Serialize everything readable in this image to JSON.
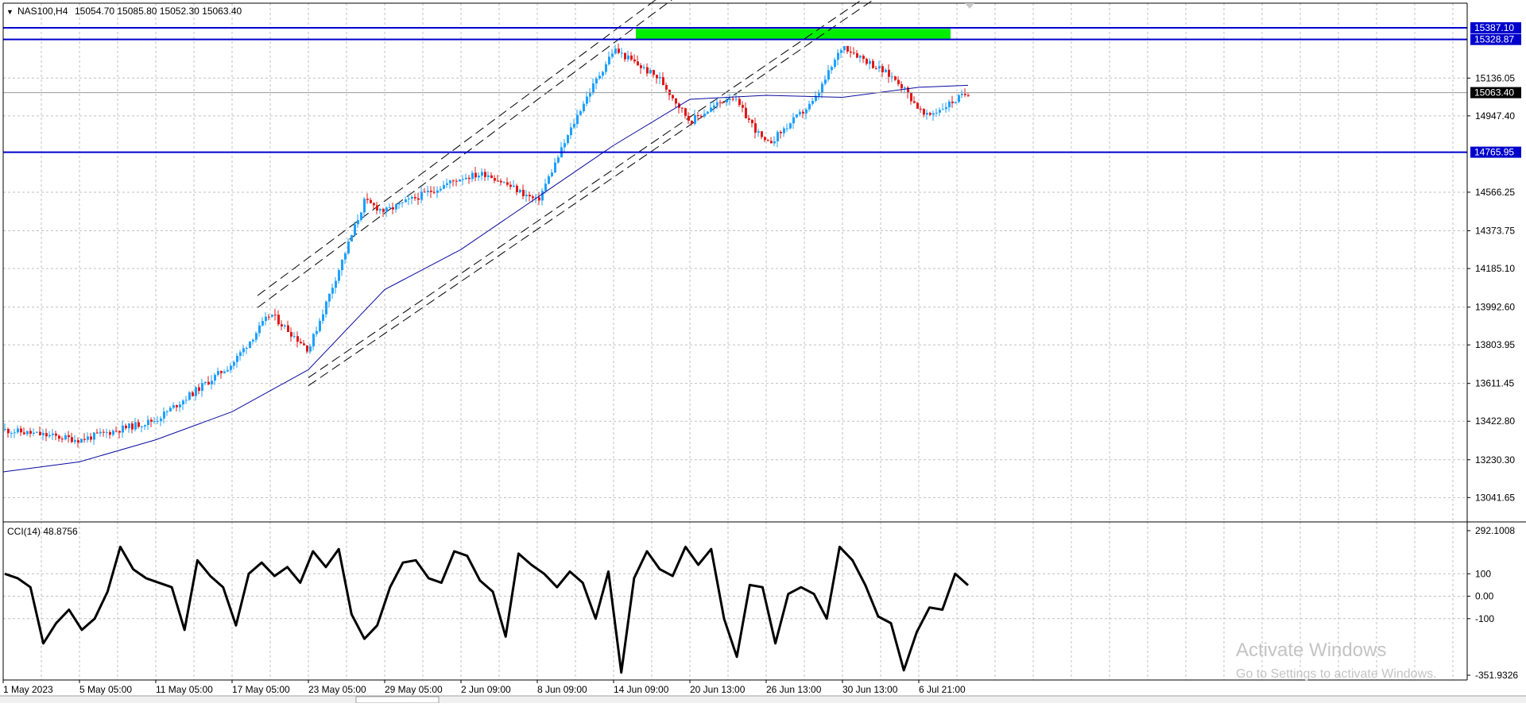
{
  "header": {
    "symbol_timeframe": "NAS100,H4",
    "ohlc": "15054.70 15085.80 15052.30 15063.40",
    "dropdown_glyph": "▼"
  },
  "cci_label": "CCI(14) 48.8756",
  "watermark": {
    "title": "Activate Windows",
    "subtitle": "Go to Settings to activate Windows."
  },
  "colors": {
    "background": "#ffffff",
    "grid": "#c0c0c0",
    "bull": "#1ea0ff",
    "bear": "#e01818",
    "ma": "#0a0aa0",
    "hline": "#0000cc",
    "channel": "#000000",
    "zone": "#00ee00",
    "current_price": "#000000",
    "cci_line": "#000000",
    "tag_fill": "#0000cc",
    "tag_text": "#ffffff"
  },
  "chart_data": [
    {
      "type": "candlestick",
      "symbol": "NAS100",
      "timeframe": "H4",
      "price_axis_ticks": [
        15136.05,
        14947.4,
        14566.25,
        14373.75,
        14185.1,
        13992.6,
        13803.95,
        13611.45,
        13422.8,
        13230.3,
        13041.65
      ],
      "price_axis_tick_labels": [
        "15136.05",
        "14947.40",
        "14566.25",
        "14373.75",
        "14185.10",
        "13992.60",
        "13803.95",
        "13611.45",
        "13422.80",
        "13230.30",
        "13041.65"
      ],
      "ylim": [
        12920,
        15510
      ],
      "time_axis_labels": [
        "1 May 2023",
        "5 May 05:00",
        "11 May 05:00",
        "17 May 05:00",
        "23 May 05:00",
        "29 May 05:00",
        "2 Jun 09:00",
        "8 Jun 09:00",
        "14 Jun 09:00",
        "20 Jun 13:00",
        "26 Jun 13:00",
        "30 Jun 13:00",
        "6 Jul 21:00"
      ],
      "horizontal_lines": [
        {
          "price": 15387.1,
          "label": "15387.10"
        },
        {
          "price": 15328.87,
          "label": "15328.87"
        },
        {
          "price": 14765.95,
          "label": "14765.95"
        }
      ],
      "current_price": {
        "price": 15063.4,
        "label": "15063.40"
      },
      "supply_zone": {
        "price_top": 15382,
        "price_bottom": 15330
      },
      "key_closes": [
        {
          "date": "1 May 2023",
          "close": 13380
        },
        {
          "date": "5 May 05:00",
          "close": 13330
        },
        {
          "date": "11 May 05:00",
          "close": 13430
        },
        {
          "date": "17 May 05:00",
          "close": 13710
        },
        {
          "date": "19 May",
          "close": 13960
        },
        {
          "date": "23 May 05:00",
          "close": 13780
        },
        {
          "date": "26 May",
          "close": 14520
        },
        {
          "date": "29 May 05:00",
          "close": 14470
        },
        {
          "date": "2 Jun 09:00",
          "close": 14640
        },
        {
          "date": "5 Jun",
          "close": 14660
        },
        {
          "date": "8 Jun 09:00",
          "close": 14520
        },
        {
          "date": "13 Jun",
          "close": 15000
        },
        {
          "date": "14 Jun 09:00",
          "close": 15280
        },
        {
          "date": "16 Jun",
          "close": 15130
        },
        {
          "date": "20 Jun 13:00",
          "close": 14920
        },
        {
          "date": "22 Jun",
          "close": 15050
        },
        {
          "date": "26 Jun 13:00",
          "close": 14800
        },
        {
          "date": "28 Jun",
          "close": 15020
        },
        {
          "date": "30 Jun 13:00",
          "close": 15300
        },
        {
          "date": "5 Jul",
          "close": 15120
        },
        {
          "date": "6 Jul 21:00",
          "close": 14940
        },
        {
          "date": "7 Jul",
          "close": 15063.4
        }
      ],
      "moving_average": [
        {
          "date": "1 May 2023",
          "value": 13170
        },
        {
          "date": "5 May 05:00",
          "value": 13220
        },
        {
          "date": "11 May 05:00",
          "value": 13330
        },
        {
          "date": "17 May 05:00",
          "value": 13470
        },
        {
          "date": "23 May 05:00",
          "value": 13680
        },
        {
          "date": "29 May 05:00",
          "value": 14080
        },
        {
          "date": "2 Jun 09:00",
          "value": 14280
        },
        {
          "date": "8 Jun 09:00",
          "value": 14540
        },
        {
          "date": "14 Jun 09:00",
          "value": 14800
        },
        {
          "date": "20 Jun 13:00",
          "value": 15030
        },
        {
          "date": "26 Jun 13:00",
          "value": 15050
        },
        {
          "date": "30 Jun 13:00",
          "value": 15040
        },
        {
          "date": "6 Jul 21:00",
          "value": 15090
        },
        {
          "date": "7 Jul",
          "value": 15100
        }
      ],
      "channel_lines": [
        {
          "start": {
            "date": "18 May",
            "price": 13990
          },
          "end": {
            "date": "15 Jun",
            "price": 15570
          }
        },
        {
          "start": {
            "date": "18 May",
            "price": 14050
          },
          "end": {
            "date": "15 Jun",
            "price": 15630
          }
        },
        {
          "start": {
            "date": "23 May 05:00",
            "price": 13640
          },
          "end": {
            "date": "27 Jun",
            "price": 15570
          }
        },
        {
          "start": {
            "date": "23 May 05:00",
            "price": 13600
          },
          "end": {
            "date": "27 Jun",
            "price": 15530
          }
        }
      ]
    },
    {
      "type": "line",
      "indicator": "CCI",
      "period": 14,
      "last_value": 48.8756,
      "axis_ticks": [
        292.1008,
        100,
        0.0,
        -100,
        -351.9326
      ],
      "axis_tick_labels": [
        "292.1008",
        "100",
        "0.00",
        "-100",
        "-351.9326"
      ],
      "ylim": [
        -351.9326,
        292.1008
      ],
      "series": [
        {
          "values": [
            100,
            80,
            40,
            -210,
            -120,
            -60,
            -150,
            -100,
            20,
            220,
            120,
            80,
            60,
            40,
            -150,
            160,
            90,
            40,
            -130,
            100,
            150,
            90,
            130,
            60,
            200,
            130,
            210,
            -80,
            -190,
            -130,
            40,
            150,
            160,
            80,
            60,
            200,
            180,
            70,
            20,
            -180,
            190,
            140,
            100,
            40,
            110,
            60,
            -100,
            110,
            -340,
            80,
            200,
            120,
            90,
            220,
            140,
            210,
            -100,
            -270,
            50,
            40,
            -210,
            10,
            40,
            10,
            -100,
            220,
            160,
            50,
            -90,
            -120,
            -330,
            -160,
            -50,
            -60,
            100,
            48.8756
          ]
        }
      ]
    }
  ]
}
